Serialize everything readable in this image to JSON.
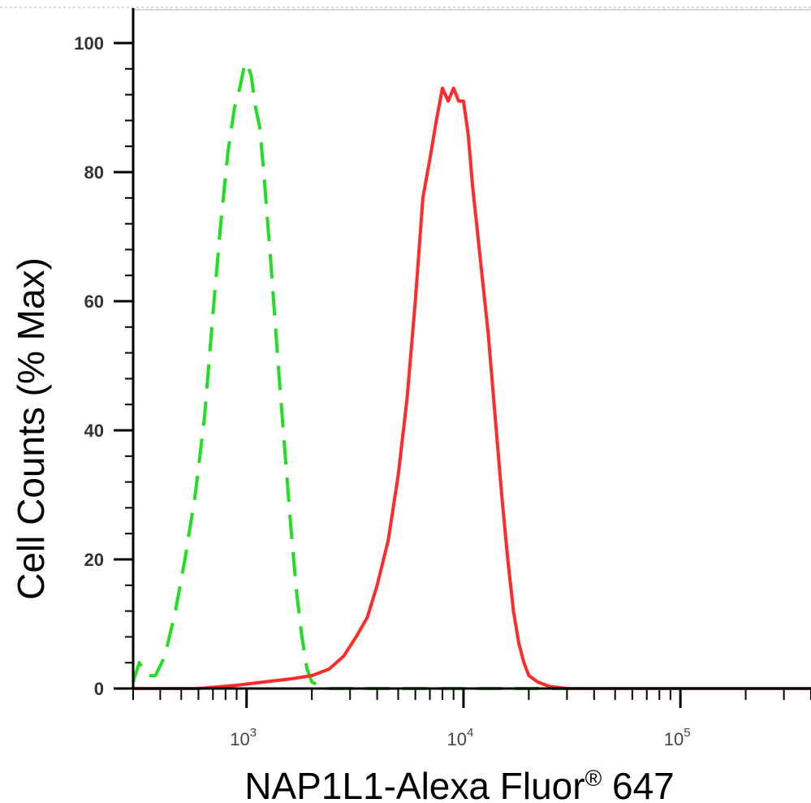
{
  "chart_data": {
    "type": "line",
    "title": "",
    "xlabel": "NAP1L1-Alexa Fluor",
    "xlabel_registered": "®",
    "xlabel_suffix": " 647",
    "ylabel": "Cell Counts (% Max)",
    "x_scale": "log",
    "xlim": [
      300,
      400000
    ],
    "ylim": [
      0,
      105
    ],
    "grid": false,
    "legend": "none",
    "y_ticks": [
      "0",
      "20",
      "40",
      "60",
      "80",
      "100"
    ],
    "x_ticks": [
      {
        "base": "10",
        "exp": "3"
      },
      {
        "base": "10",
        "exp": "4"
      },
      {
        "base": "10",
        "exp": "5"
      }
    ],
    "series": [
      {
        "color": "#22dd22",
        "style": "dashed",
        "x": [
          300,
          320,
          350,
          380,
          420,
          470,
          520,
          580,
          640,
          700,
          760,
          820,
          880,
          930,
          970,
          1000,
          1050,
          1100,
          1150,
          1200,
          1300,
          1400,
          1500,
          1600,
          1700,
          1800,
          1900,
          2000,
          2200,
          2400,
          3000,
          5000,
          10000,
          30000,
          100000,
          400000
        ],
        "values": [
          1,
          4,
          2,
          2,
          5,
          12,
          20,
          30,
          42,
          58,
          72,
          83,
          90,
          93,
          96,
          97,
          95,
          90,
          87,
          80,
          65,
          50,
          37,
          25,
          15,
          8,
          3,
          1,
          0.3,
          0,
          0,
          0,
          0,
          0,
          0,
          0
        ]
      },
      {
        "color": "#ff2a2a",
        "style": "solid",
        "x": [
          300,
          600,
          900,
          1200,
          1600,
          2000,
          2400,
          2800,
          3200,
          3600,
          4000,
          4500,
          5000,
          5500,
          6000,
          6500,
          7000,
          7500,
          8000,
          8500,
          9000,
          9500,
          10000,
          10500,
          11000,
          11500,
          12000,
          13000,
          14000,
          15000,
          16000,
          17000,
          18000,
          19000,
          20000,
          22000,
          25000,
          30000,
          50000,
          100000,
          400000
        ],
        "values": [
          0,
          0,
          0.5,
          1,
          1.5,
          2,
          3,
          5,
          8,
          11,
          16,
          23,
          33,
          45,
          60,
          76,
          82,
          88,
          93,
          91,
          93,
          91,
          91,
          86,
          78,
          72,
          66,
          55,
          42,
          30,
          20,
          12,
          7,
          4,
          2,
          1,
          0.3,
          0,
          0,
          0,
          0
        ]
      }
    ]
  }
}
